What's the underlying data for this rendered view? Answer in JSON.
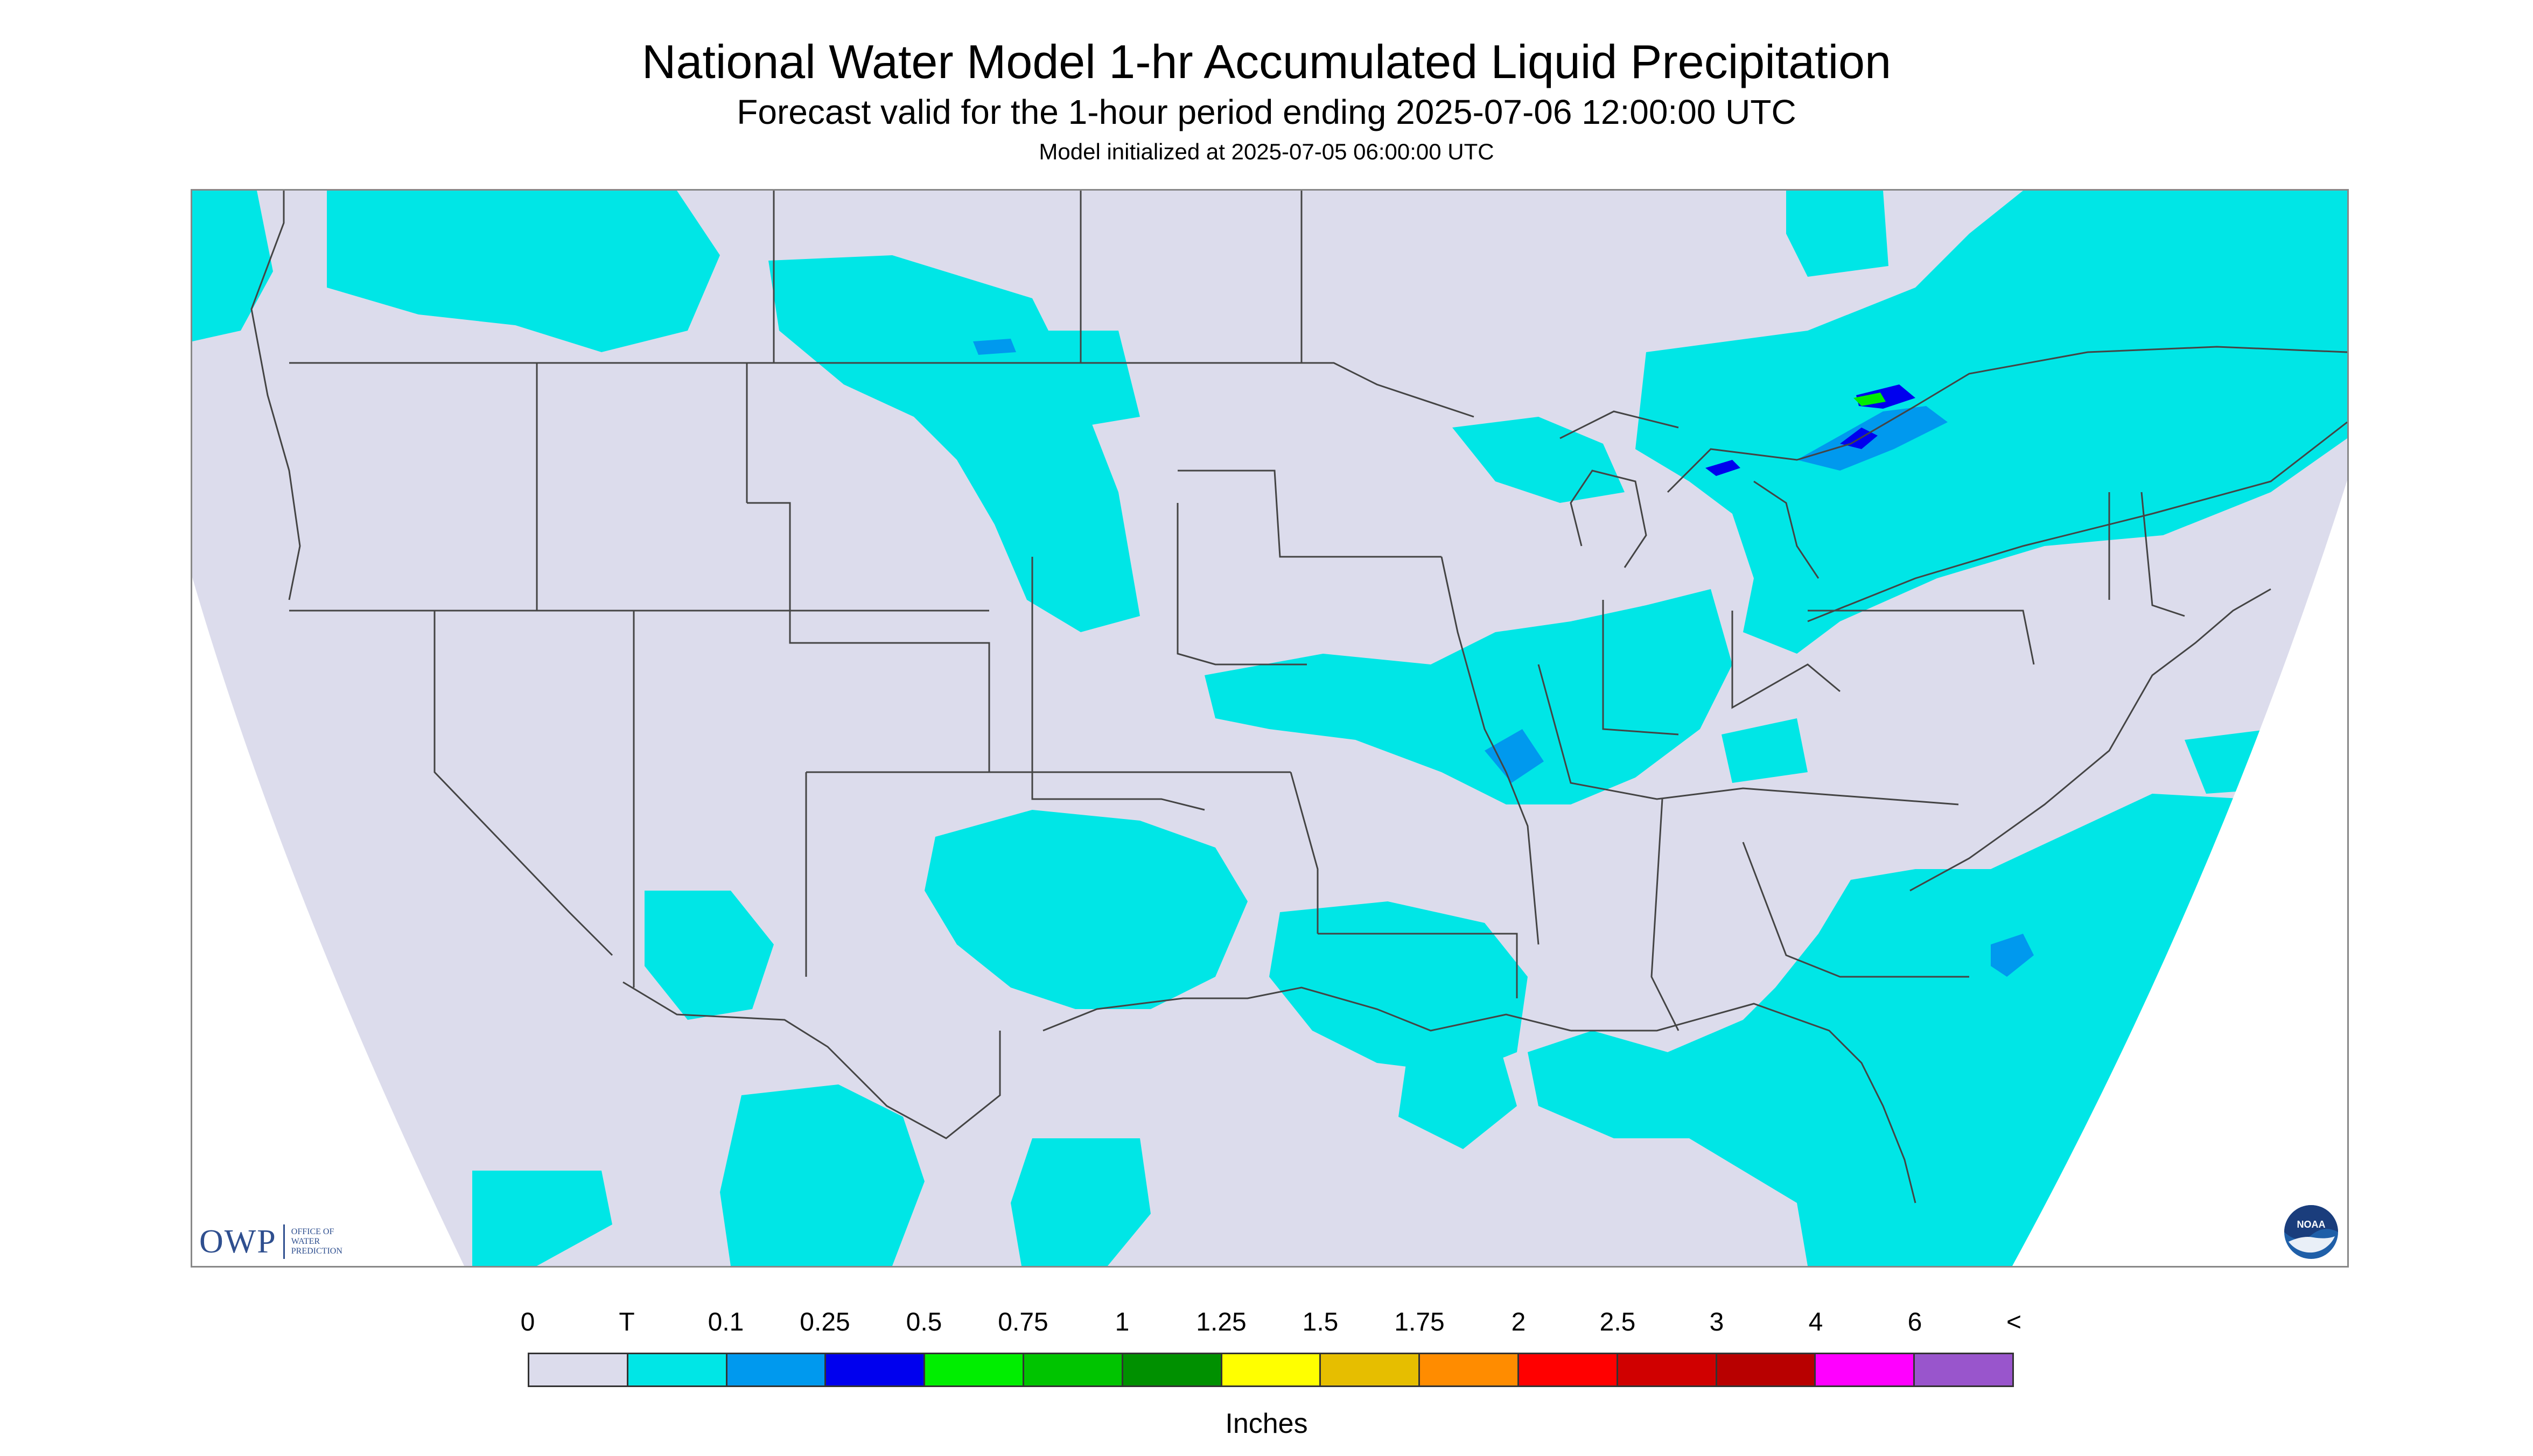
{
  "title": "National Water Model 1-hr Accumulated Liquid Precipitation",
  "subtitle": "Forecast valid for the 1-hour period ending 2025-07-06 12:00:00 UTC",
  "init_line": "Model initialized at 2025-07-05 06:00:00 UTC",
  "colors": {
    "background_zero": "#dcdcec",
    "land_line": "#444444",
    "trace": "#00e6e6",
    "light_blue": "#0099ee",
    "blue": "#0000ee",
    "green": "#00ee00"
  },
  "legend": {
    "units": "Inches",
    "labels": [
      "0",
      "T",
      "0.1",
      "0.25",
      "0.5",
      "0.75",
      "1",
      "1.25",
      "1.5",
      "1.75",
      "2",
      "2.5",
      "3",
      "4",
      "6",
      "<"
    ],
    "colors": [
      "#dcdcec",
      "#00e6e6",
      "#0099ee",
      "#0000ee",
      "#00ee00",
      "#00c400",
      "#009000",
      "#ffff00",
      "#e6be00",
      "#ff8c00",
      "#ff0000",
      "#d00000",
      "#b80000",
      "#ff00ff",
      "#9955cc"
    ]
  },
  "logos": {
    "owp_text": "OWP",
    "owp_sub": [
      "OFFICE OF",
      "WATER",
      "PREDICTION"
    ],
    "noaa_text": "NOAA"
  }
}
